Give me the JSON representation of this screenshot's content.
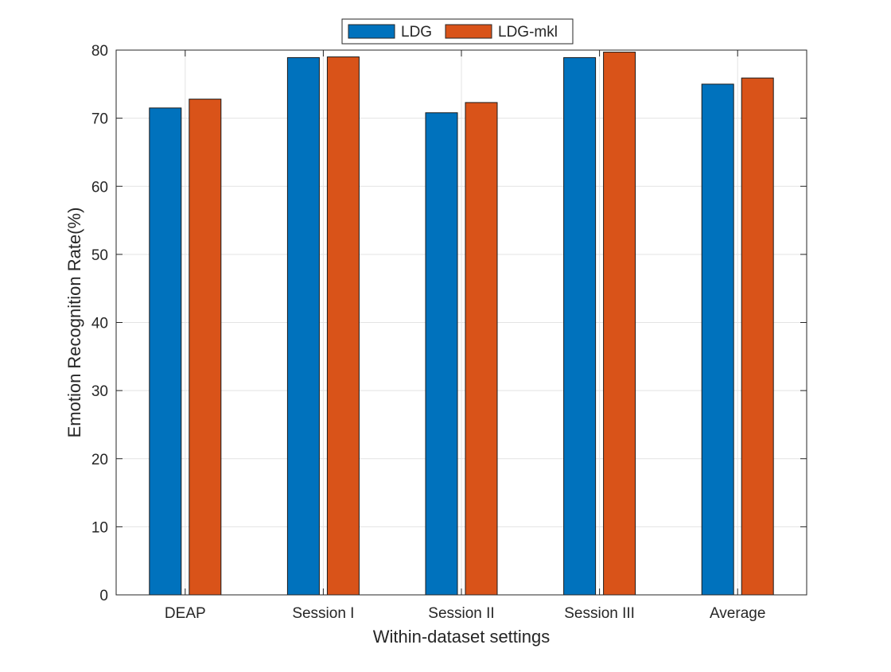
{
  "chart_data": {
    "type": "bar",
    "xlabel": "Within-dataset settings",
    "ylabel": "Emotion Recognition Rate(%)",
    "categories": [
      "DEAP",
      "Session I",
      "Session II",
      "Session III",
      "Average"
    ],
    "series": [
      {
        "name": "LDG",
        "color": "#0072BD",
        "values": [
          71.5,
          78.9,
          70.8,
          78.9,
          75.0
        ]
      },
      {
        "name": "LDG-mkl",
        "color": "#D95319",
        "values": [
          72.8,
          79.0,
          72.3,
          79.7,
          75.9
        ]
      }
    ],
    "ylim": [
      0,
      80
    ],
    "yticks": [
      "0",
      "10",
      "20",
      "30",
      "40",
      "50",
      "60",
      "70",
      "80"
    ],
    "grid": true,
    "legend_position": "top-center"
  }
}
